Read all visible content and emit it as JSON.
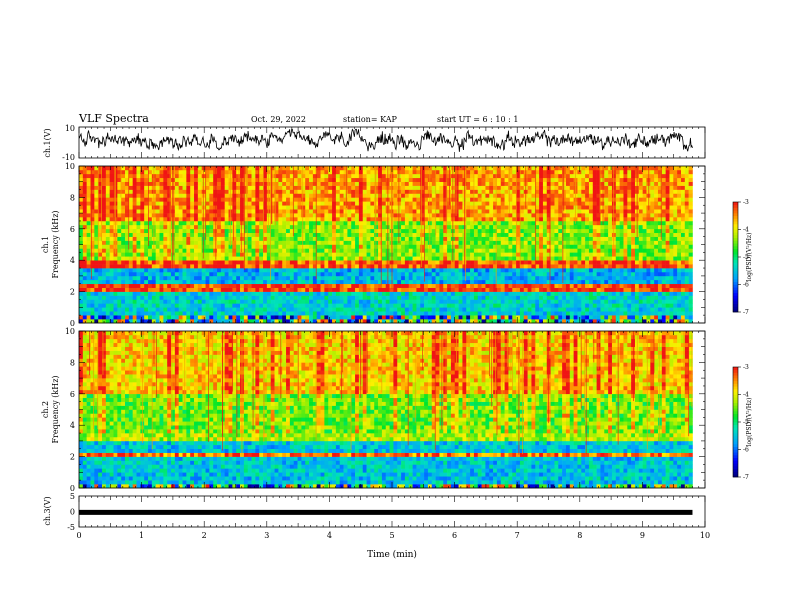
{
  "header": {
    "title": "VLF Spectra",
    "date": "Oct. 29, 2022",
    "station": "station= KAP",
    "start": "start  UT =   6  : 10 : 1"
  },
  "chart_data": [
    {
      "type": "line",
      "panel": "ch1-waveform",
      "ylabel": "ch.1(V)",
      "ylim": [
        -10,
        10
      ],
      "yticks": [
        "10",
        "-10"
      ],
      "xlim": [
        0,
        10
      ],
      "description_values": "dense noisy waveform, mostly between -5 and 8 V"
    },
    {
      "type": "heatmap",
      "panel": "ch1-spectrogram",
      "ylabel": "ch.1\nFrequency (kHz)",
      "ylim": [
        0,
        10
      ],
      "yticks": [
        "0",
        "2",
        "4",
        "6",
        "8",
        "10"
      ],
      "xlim": [
        0,
        9.8
      ],
      "colorbar": {
        "label": "log(PSD)(V²/Hz)",
        "range": [
          -7,
          -3
        ],
        "ticks": [
          "-3",
          "-4",
          "-5",
          "-6",
          "-7"
        ]
      },
      "bands": [
        {
          "from": 0,
          "to": 0.5,
          "level": "mixed"
        },
        {
          "from": 0.5,
          "to": 2.1,
          "level": -5.4
        },
        {
          "from": 2.1,
          "to": 2.4,
          "level": -3.2
        },
        {
          "from": 2.4,
          "to": 3.5,
          "level": -5.6
        },
        {
          "from": 3.5,
          "to": 4.0,
          "level": -3.3
        },
        {
          "from": 4.0,
          "to": 6.5,
          "level": -4.4
        },
        {
          "from": 6.5,
          "to": 10,
          "level": -3.6
        }
      ]
    },
    {
      "type": "heatmap",
      "panel": "ch2-spectrogram",
      "ylabel": "ch.2\nFrequency (kHz)",
      "ylim": [
        0,
        10
      ],
      "yticks": [
        "0",
        "2",
        "4",
        "6",
        "8",
        "10"
      ],
      "xlim": [
        0,
        9.8
      ],
      "colorbar": {
        "label": "log(PSD)(V²/Hz)",
        "range": [
          -7,
          -3
        ],
        "ticks": [
          "-3",
          "-4",
          "-5",
          "-6",
          "-7"
        ]
      },
      "bands": [
        {
          "from": 0,
          "to": 0.3,
          "level": "mixed"
        },
        {
          "from": 0.3,
          "to": 2.0,
          "level": -5.5
        },
        {
          "from": 2.0,
          "to": 2.3,
          "level": -3.4
        },
        {
          "from": 2.3,
          "to": 3.1,
          "level": -5.5
        },
        {
          "from": 3.1,
          "to": 3.5,
          "level": -4.2
        },
        {
          "from": 3.5,
          "to": 6.0,
          "level": -4.5
        },
        {
          "from": 6.0,
          "to": 10,
          "level": -3.8
        }
      ]
    },
    {
      "type": "line",
      "panel": "ch3-waveform",
      "ylabel": "ch.3(V)",
      "ylim": [
        -5,
        5
      ],
      "yticks": [
        "5",
        "0",
        "-5"
      ],
      "xlim": [
        0,
        10
      ],
      "level": -0.3,
      "xlabel": "Time (min)",
      "xticks": [
        "0",
        "1",
        "2",
        "3",
        "4",
        "5",
        "6",
        "7",
        "8",
        "9",
        "10"
      ]
    }
  ]
}
